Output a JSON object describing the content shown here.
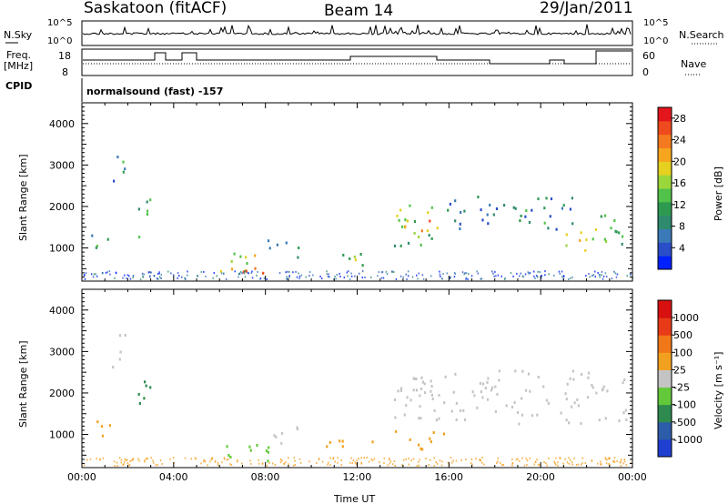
{
  "header": {
    "station": "Saskatoon (fitACF)",
    "beam": "Beam 14",
    "date": "29/Jan/2011"
  },
  "aux_labels": {
    "nsky": "N.Sky",
    "nsearch": "N.Search",
    "freq_line1": "Freq.",
    "freq_line2": "[MHz]",
    "nave": "Nave",
    "cpid": "CPID",
    "cpid_value": "normalsound (fast) -157",
    "pow10_a": "10^5",
    "pow10_b": "10^0",
    "pow10_c": "10^5",
    "pow10_d": "10^0",
    "freq_hi": "18",
    "freq_lo": "8",
    "nave_hi": "60",
    "nave_lo": "0"
  },
  "chart_data": [
    {
      "type": "heatmap",
      "name": "power",
      "ylabel": "Slant Range [km]",
      "xlabel": "Time UT",
      "xlim": [
        0,
        24
      ],
      "ylim": [
        200,
        4500
      ],
      "x_ticks": [
        "00:00",
        "04:00",
        "08:00",
        "12:00",
        "16:00",
        "20:00",
        "00:00"
      ],
      "y_ticks": [
        1000,
        2000,
        3000,
        4000
      ],
      "colorbar": {
        "label": "Power [dB]",
        "ticks": [
          4,
          8,
          12,
          16,
          20,
          24,
          28
        ],
        "range": [
          0,
          30
        ],
        "colors": [
          "#0020ff",
          "#2a4dc8",
          "#3a7ab8",
          "#2f8a6e",
          "#2e9a50",
          "#52c24a",
          "#9bd63a",
          "#e6d020",
          "#f7a51e",
          "#f47a1f",
          "#ee4a1e",
          "#e3161b"
        ]
      },
      "regions": [
        {
          "t": [
            0.3,
            1.2
          ],
          "r": [
            800,
            1300
          ],
          "level": 10
        },
        {
          "t": [
            1.3,
            1.9
          ],
          "r": [
            2500,
            3500
          ],
          "level": 8
        },
        {
          "t": [
            2.3,
            3.0
          ],
          "r": [
            1200,
            2300
          ],
          "level": 9
        },
        {
          "t": [
            6.0,
            8.2
          ],
          "r": [
            400,
            900
          ],
          "level": 18
        },
        {
          "t": [
            6.8,
            8.0
          ],
          "r": [
            300,
            650
          ],
          "level": 26
        },
        {
          "t": [
            8.0,
            9.5
          ],
          "r": [
            700,
            1200
          ],
          "level": 10
        },
        {
          "t": [
            10.6,
            12.8
          ],
          "r": [
            500,
            850
          ],
          "level": 15
        },
        {
          "t": [
            13.6,
            15.8
          ],
          "r": [
            1000,
            2100
          ],
          "level": 14
        },
        {
          "t": [
            14.0,
            15.2
          ],
          "r": [
            1300,
            1700
          ],
          "level": 22
        },
        {
          "t": [
            15.8,
            21.5
          ],
          "r": [
            1400,
            2200
          ],
          "level": 8
        },
        {
          "t": [
            21.0,
            22.5
          ],
          "r": [
            900,
            1500
          ],
          "level": 18
        },
        {
          "t": [
            22.5,
            23.8
          ],
          "r": [
            800,
            1800
          ],
          "level": 12
        }
      ]
    },
    {
      "type": "heatmap",
      "name": "velocity",
      "ylabel": "Slant Range [km]",
      "xlabel": "Time UT",
      "xlim": [
        0,
        24
      ],
      "ylim": [
        200,
        4500
      ],
      "x_ticks": [
        "00:00",
        "04:00",
        "08:00",
        "12:00",
        "16:00",
        "20:00",
        "00:00"
      ],
      "y_ticks": [
        1000,
        2000,
        3000,
        4000
      ],
      "colorbar": {
        "label": "Velocity [m s⁻¹]",
        "ticks": [
          "1000",
          "500",
          "100",
          "25",
          "-25",
          "-100",
          "-500",
          "-1000"
        ],
        "colors": [
          "#1f3fd0",
          "#2d5ca8",
          "#2e8a4e",
          "#63c93a",
          "#c4c4c4",
          "#f2a020",
          "#f07818",
          "#e83a18",
          "#d81010"
        ]
      },
      "regions": [
        {
          "t": [
            0.3,
            1.2
          ],
          "r": [
            800,
            1300
          ],
          "color": "#f2a020"
        },
        {
          "t": [
            1.3,
            1.9
          ],
          "r": [
            2500,
            3500
          ],
          "color": "#c4c4c4"
        },
        {
          "t": [
            2.3,
            3.0
          ],
          "r": [
            1200,
            2300
          ],
          "color": "#2e8a4e"
        },
        {
          "t": [
            6.0,
            8.5
          ],
          "r": [
            300,
            800
          ],
          "color": "#63c93a"
        },
        {
          "t": [
            8.0,
            9.5
          ],
          "r": [
            700,
            1200
          ],
          "color": "#c4c4c4"
        },
        {
          "t": [
            10.6,
            12.8
          ],
          "r": [
            500,
            850
          ],
          "color": "#f2a020"
        },
        {
          "t": [
            13.6,
            15.8
          ],
          "r": [
            600,
            1100
          ],
          "color": "#f2a020"
        },
        {
          "t": [
            13.6,
            23.8
          ],
          "r": [
            1200,
            2500
          ],
          "color": "#c4c4c4"
        }
      ]
    }
  ]
}
